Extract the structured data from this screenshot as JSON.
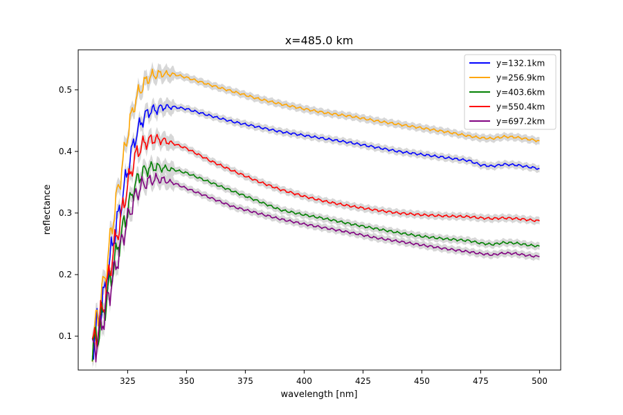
{
  "chart_data": {
    "type": "line",
    "title": "x=485.0 km",
    "xlabel": "wavelength [nm]",
    "ylabel": "reflectance",
    "xlim": [
      304,
      509
    ],
    "ylim": [
      0.045,
      0.565
    ],
    "xticks": [
      325,
      350,
      375,
      400,
      425,
      450,
      475,
      500
    ],
    "yticks": [
      0.1,
      0.2,
      0.3,
      0.4,
      0.5
    ],
    "grid": false,
    "legend_position": "upper right",
    "uncertainty_band_color": "#d3d3d3",
    "series": [
      {
        "name": "y=132.1km",
        "color": "#0000ff",
        "band": 0.006,
        "points": [
          [
            310,
            0.083
          ],
          [
            313,
            0.13
          ],
          [
            316,
            0.185
          ],
          [
            319,
            0.26
          ],
          [
            322,
            0.31
          ],
          [
            325,
            0.37
          ],
          [
            328,
            0.42
          ],
          [
            331,
            0.45
          ],
          [
            334,
            0.465
          ],
          [
            337,
            0.468
          ],
          [
            340,
            0.472
          ],
          [
            345,
            0.472
          ],
          [
            350,
            0.469
          ],
          [
            360,
            0.458
          ],
          [
            370,
            0.448
          ],
          [
            380,
            0.44
          ],
          [
            390,
            0.432
          ],
          [
            400,
            0.426
          ],
          [
            410,
            0.42
          ],
          [
            420,
            0.414
          ],
          [
            430,
            0.407
          ],
          [
            440,
            0.4
          ],
          [
            450,
            0.395
          ],
          [
            460,
            0.39
          ],
          [
            470,
            0.385
          ],
          [
            475,
            0.378
          ],
          [
            480,
            0.376
          ],
          [
            485,
            0.379
          ],
          [
            490,
            0.378
          ],
          [
            495,
            0.375
          ],
          [
            500,
            0.372
          ]
        ]
      },
      {
        "name": "y=256.9km",
        "color": "#ffa500",
        "band": 0.006,
        "points": [
          [
            310,
            0.092
          ],
          [
            313,
            0.145
          ],
          [
            316,
            0.21
          ],
          [
            319,
            0.295
          ],
          [
            322,
            0.36
          ],
          [
            325,
            0.43
          ],
          [
            328,
            0.48
          ],
          [
            331,
            0.505
          ],
          [
            334,
            0.52
          ],
          [
            337,
            0.525
          ],
          [
            340,
            0.526
          ],
          [
            345,
            0.525
          ],
          [
            350,
            0.52
          ],
          [
            360,
            0.508
          ],
          [
            370,
            0.497
          ],
          [
            380,
            0.486
          ],
          [
            390,
            0.477
          ],
          [
            400,
            0.469
          ],
          [
            410,
            0.462
          ],
          [
            420,
            0.457
          ],
          [
            430,
            0.45
          ],
          [
            440,
            0.444
          ],
          [
            450,
            0.438
          ],
          [
            460,
            0.432
          ],
          [
            470,
            0.425
          ],
          [
            475,
            0.422
          ],
          [
            480,
            0.421
          ],
          [
            485,
            0.424
          ],
          [
            490,
            0.423
          ],
          [
            495,
            0.42
          ],
          [
            500,
            0.417
          ]
        ]
      },
      {
        "name": "y=403.6km",
        "color": "#008000",
        "band": 0.006,
        "points": [
          [
            310,
            0.075
          ],
          [
            313,
            0.11
          ],
          [
            316,
            0.16
          ],
          [
            319,
            0.215
          ],
          [
            322,
            0.26
          ],
          [
            325,
            0.305
          ],
          [
            328,
            0.345
          ],
          [
            331,
            0.365
          ],
          [
            334,
            0.373
          ],
          [
            337,
            0.375
          ],
          [
            340,
            0.373
          ],
          [
            345,
            0.37
          ],
          [
            350,
            0.365
          ],
          [
            360,
            0.35
          ],
          [
            370,
            0.335
          ],
          [
            380,
            0.32
          ],
          [
            390,
            0.305
          ],
          [
            400,
            0.297
          ],
          [
            410,
            0.29
          ],
          [
            420,
            0.282
          ],
          [
            430,
            0.275
          ],
          [
            440,
            0.268
          ],
          [
            450,
            0.262
          ],
          [
            460,
            0.258
          ],
          [
            470,
            0.255
          ],
          [
            475,
            0.251
          ],
          [
            480,
            0.249
          ],
          [
            485,
            0.252
          ],
          [
            490,
            0.251
          ],
          [
            495,
            0.248
          ],
          [
            500,
            0.246
          ]
        ]
      },
      {
        "name": "y=550.4km",
        "color": "#ff0000",
        "band": 0.006,
        "points": [
          [
            310,
            0.08
          ],
          [
            313,
            0.12
          ],
          [
            316,
            0.175
          ],
          [
            319,
            0.24
          ],
          [
            322,
            0.29
          ],
          [
            325,
            0.345
          ],
          [
            328,
            0.39
          ],
          [
            331,
            0.41
          ],
          [
            334,
            0.418
          ],
          [
            337,
            0.42
          ],
          [
            340,
            0.418
          ],
          [
            345,
            0.412
          ],
          [
            350,
            0.405
          ],
          [
            360,
            0.385
          ],
          [
            370,
            0.368
          ],
          [
            380,
            0.352
          ],
          [
            390,
            0.338
          ],
          [
            400,
            0.327
          ],
          [
            410,
            0.318
          ],
          [
            420,
            0.311
          ],
          [
            430,
            0.305
          ],
          [
            440,
            0.3
          ],
          [
            450,
            0.297
          ],
          [
            460,
            0.295
          ],
          [
            470,
            0.294
          ],
          [
            475,
            0.292
          ],
          [
            480,
            0.291
          ],
          [
            485,
            0.292
          ],
          [
            490,
            0.291
          ],
          [
            495,
            0.289
          ],
          [
            500,
            0.287
          ]
        ]
      },
      {
        "name": "y=697.2km",
        "color": "#800080",
        "band": 0.006,
        "points": [
          [
            310,
            0.072
          ],
          [
            313,
            0.105
          ],
          [
            316,
            0.15
          ],
          [
            319,
            0.2
          ],
          [
            322,
            0.245
          ],
          [
            325,
            0.29
          ],
          [
            328,
            0.325
          ],
          [
            331,
            0.345
          ],
          [
            334,
            0.352
          ],
          [
            337,
            0.355
          ],
          [
            340,
            0.354
          ],
          [
            345,
            0.348
          ],
          [
            350,
            0.34
          ],
          [
            360,
            0.325
          ],
          [
            370,
            0.31
          ],
          [
            380,
            0.3
          ],
          [
            390,
            0.29
          ],
          [
            400,
            0.282
          ],
          [
            410,
            0.275
          ],
          [
            420,
            0.268
          ],
          [
            430,
            0.26
          ],
          [
            440,
            0.254
          ],
          [
            450,
            0.248
          ],
          [
            460,
            0.242
          ],
          [
            470,
            0.237
          ],
          [
            475,
            0.234
          ],
          [
            480,
            0.232
          ],
          [
            485,
            0.235
          ],
          [
            490,
            0.234
          ],
          [
            495,
            0.231
          ],
          [
            500,
            0.229
          ]
        ]
      }
    ]
  }
}
